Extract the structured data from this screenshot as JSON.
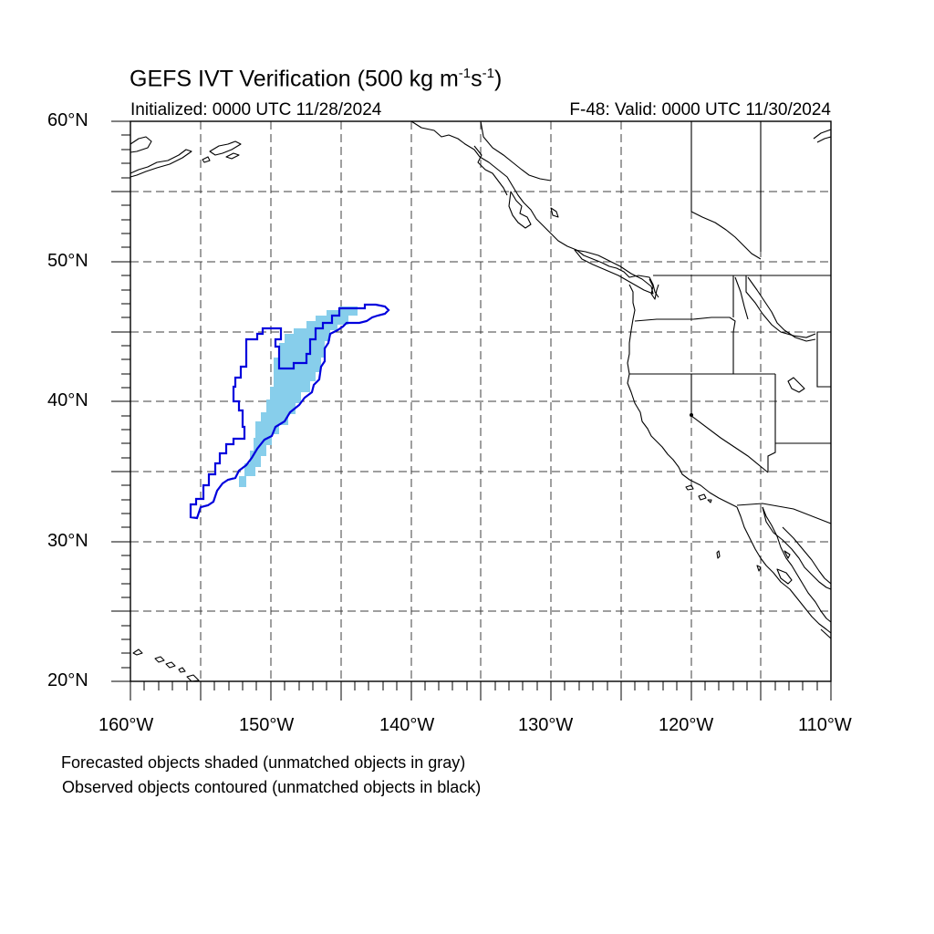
{
  "map": {
    "title_main": "GEFS IVT Verification (500 kg m",
    "title_exp1": "-1",
    "title_mid": "s",
    "title_exp2": "-1",
    "title_end": ")",
    "initialized": "Initialized: 0000 UTC 11/28/2024",
    "valid": "F-48: Valid: 0000 UTC 11/30/2024",
    "lat_labels": [
      "60°N",
      "50°N",
      "40°N",
      "30°N",
      "20°N"
    ],
    "lon_labels": [
      "160°W",
      "150°W",
      "140°W",
      "130°W",
      "120°W",
      "110°W"
    ],
    "extent": {
      "lon_min": -160,
      "lon_max": -110,
      "lat_min": 20,
      "lat_max": 60
    },
    "notes": [
      "Forecasted objects shaded (unmatched objects in gray)",
      "Observed objects contoured (unmatched objects in black)"
    ],
    "colors": {
      "forecast_fill": "#87CEEB",
      "observed_contour": "#0000DD",
      "coastline": "#000000",
      "grid": "#000000"
    }
  }
}
